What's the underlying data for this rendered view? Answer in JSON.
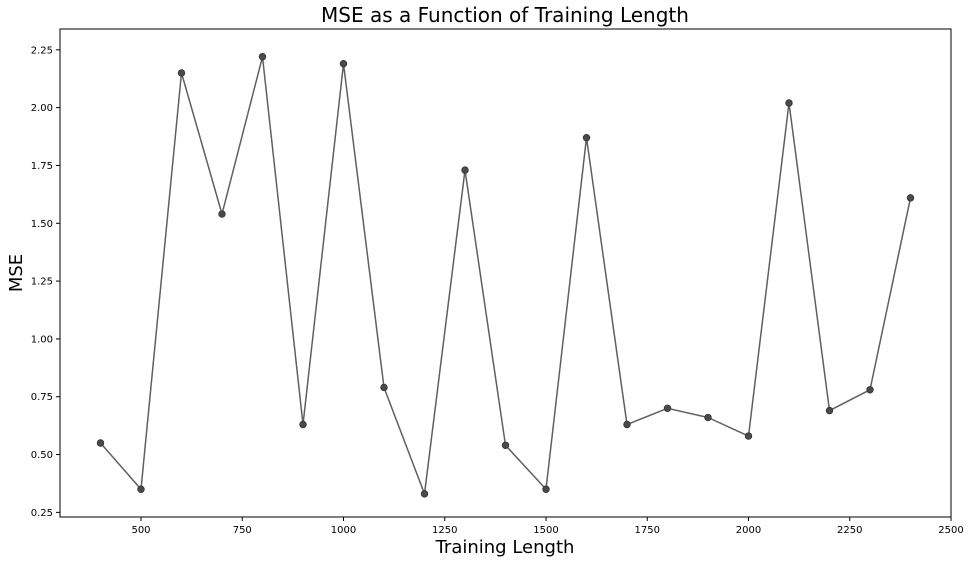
{
  "chart_data": {
    "type": "line",
    "title": "MSE as a Function of Training Length",
    "xlabel": "Training Length",
    "ylabel": "MSE",
    "xlim": [
      300,
      2500
    ],
    "ylim": [
      0.23,
      2.34
    ],
    "xticks": [
      500,
      750,
      1000,
      1250,
      1500,
      1750,
      2000,
      2250,
      2500
    ],
    "yticks": [
      0.25,
      0.5,
      0.75,
      1.0,
      1.25,
      1.5,
      1.75,
      2.0,
      2.25
    ],
    "ytick_labels": [
      "0.25",
      "0.50",
      "0.75",
      "1.00",
      "1.25",
      "1.50",
      "1.75",
      "2.00",
      "2.25"
    ],
    "grid": false,
    "series": [
      {
        "color": "#5f5f5f",
        "marker": "circle",
        "x": [
          400,
          500,
          600,
          700,
          800,
          900,
          1000,
          1100,
          1200,
          1300,
          1400,
          1500,
          1600,
          1700,
          1800,
          1900,
          2000,
          2100,
          2200,
          2300,
          2400
        ],
        "y": [
          0.55,
          0.35,
          2.15,
          1.54,
          2.22,
          0.63,
          2.19,
          0.79,
          0.33,
          1.73,
          0.54,
          0.35,
          1.87,
          0.63,
          0.7,
          0.66,
          0.58,
          2.02,
          0.69,
          0.78,
          1.61
        ]
      }
    ]
  }
}
